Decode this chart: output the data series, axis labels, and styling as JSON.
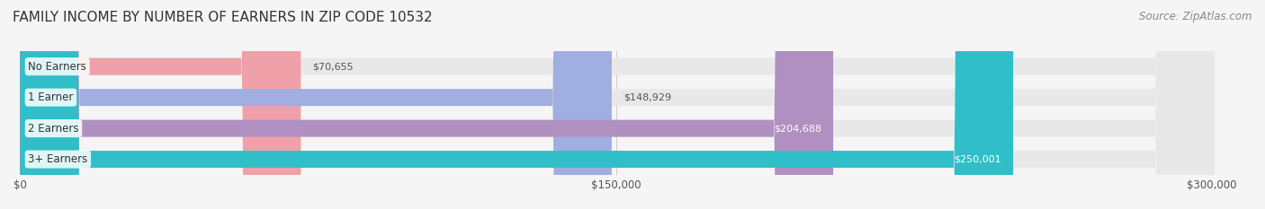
{
  "title": "FAMILY INCOME BY NUMBER OF EARNERS IN ZIP CODE 10532",
  "source": "Source: ZipAtlas.com",
  "categories": [
    "No Earners",
    "1 Earner",
    "2 Earners",
    "3+ Earners"
  ],
  "values": [
    70655,
    148929,
    204688,
    250001
  ],
  "bar_colors": [
    "#f0a0a8",
    "#a0aee0",
    "#b090c0",
    "#30bfc8"
  ],
  "bar_edge_colors": [
    "#e08090",
    "#8090d0",
    "#9070b0",
    "#20aab8"
  ],
  "label_colors": [
    "#555555",
    "#555555",
    "#ffffff",
    "#ffffff"
  ],
  "x_ticks": [
    0,
    150000,
    300000
  ],
  "x_tick_labels": [
    "$0",
    "$150,000",
    "$300,000"
  ],
  "xlim": [
    0,
    310000
  ],
  "background_color": "#f5f5f5",
  "bar_background_color": "#e8e8e8",
  "title_fontsize": 11,
  "source_fontsize": 8.5,
  "bar_height": 0.55,
  "figsize": [
    14.06,
    2.33
  ],
  "dpi": 100
}
